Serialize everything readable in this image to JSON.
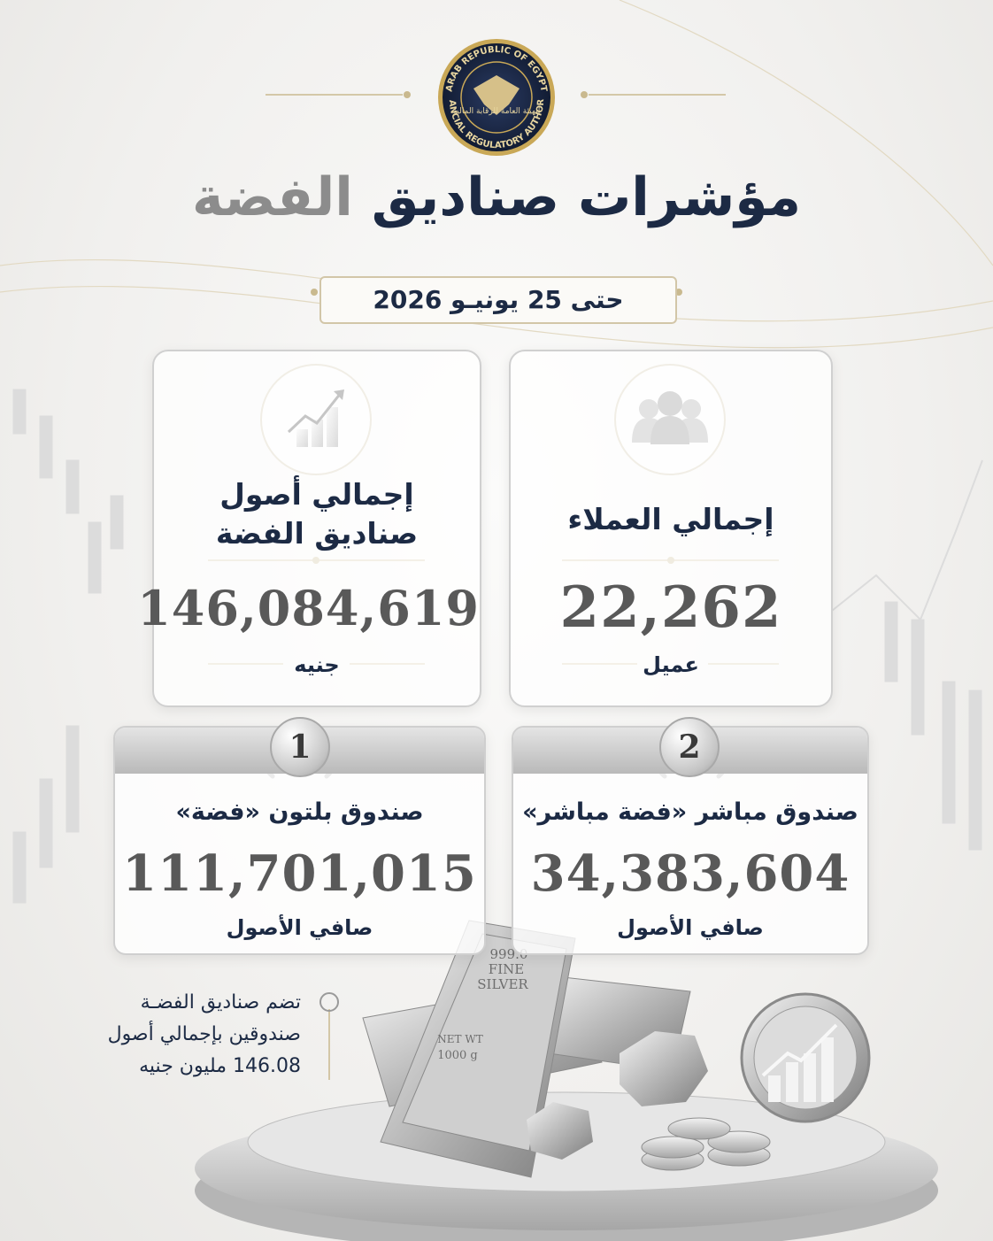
{
  "header": {
    "logo_top": "ARAB REPUBLIC OF EGYPT",
    "logo_bottom": "FINANCIAL REGULATORY AUTHORITY",
    "logo_arabic": "الهيئة العامة للرقابة المالية",
    "title_main": "مؤشرات صناديق",
    "title_highlight": "الفضة",
    "date": "حتى 25 يونيـو 2026"
  },
  "cards": [
    {
      "title": "إجمالي العملاء",
      "value": "22,262",
      "unit": "عميل"
    },
    {
      "title_lines": [
        "إجمالي أصول",
        "صناديق الفضة"
      ],
      "value": "146,084,619",
      "unit": "جنيه"
    }
  ],
  "funds": [
    {
      "rank": "2",
      "name": "صندوق مباشر «فضة مباشر»",
      "value": "34,383,604",
      "label": "صافي الأصول"
    },
    {
      "rank": "1",
      "name": "صندوق بلتون «فضة»",
      "value": "111,701,015",
      "label": "صافي الأصول"
    }
  ],
  "note": [
    "تضم صناديق الفضـة",
    "صندوقين بإجمالي أصول",
    "146.08 مليون جنيه"
  ],
  "silver_bar": [
    "999.0",
    "FINE",
    "SILVER",
    "NET WT",
    "1000 g"
  ]
}
